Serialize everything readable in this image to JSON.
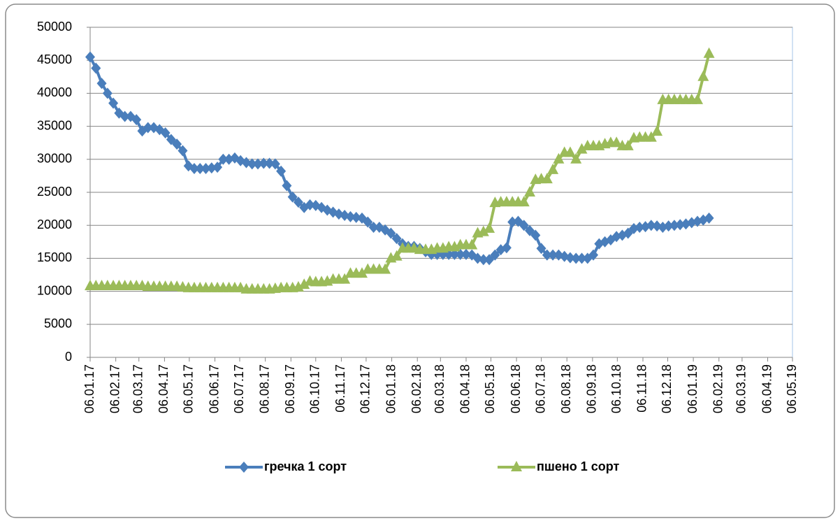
{
  "chart_data": {
    "type": "line",
    "x": [
      "2017-01-06",
      "2017-01-13",
      "2017-01-20",
      "2017-01-27",
      "2017-02-03",
      "2017-02-10",
      "2017-02-17",
      "2017-02-24",
      "2017-03-03",
      "2017-03-10",
      "2017-03-17",
      "2017-03-24",
      "2017-03-31",
      "2017-04-07",
      "2017-04-14",
      "2017-04-21",
      "2017-04-28",
      "2017-05-05",
      "2017-05-12",
      "2017-05-19",
      "2017-05-26",
      "2017-06-02",
      "2017-06-09",
      "2017-06-16",
      "2017-06-23",
      "2017-06-30",
      "2017-07-07",
      "2017-07-14",
      "2017-07-21",
      "2017-07-28",
      "2017-08-04",
      "2017-08-11",
      "2017-08-18",
      "2017-08-25",
      "2017-09-01",
      "2017-09-08",
      "2017-09-15",
      "2017-09-22",
      "2017-09-29",
      "2017-10-06",
      "2017-10-13",
      "2017-10-20",
      "2017-10-27",
      "2017-11-03",
      "2017-11-10",
      "2017-11-17",
      "2017-11-24",
      "2017-12-01",
      "2017-12-08",
      "2017-12-15",
      "2017-12-22",
      "2017-12-29",
      "2018-01-05",
      "2018-01-12",
      "2018-01-19",
      "2018-01-26",
      "2018-02-02",
      "2018-02-09",
      "2018-02-16",
      "2018-02-23",
      "2018-03-02",
      "2018-03-09",
      "2018-03-16",
      "2018-03-23",
      "2018-03-30",
      "2018-04-06",
      "2018-04-13",
      "2018-04-20",
      "2018-04-27",
      "2018-05-04",
      "2018-05-11",
      "2018-05-18",
      "2018-05-25",
      "2018-06-01",
      "2018-06-08",
      "2018-06-15",
      "2018-06-22",
      "2018-06-29",
      "2018-07-06",
      "2018-07-13",
      "2018-07-20",
      "2018-07-27",
      "2018-08-03",
      "2018-08-10",
      "2018-08-17",
      "2018-08-24",
      "2018-08-31",
      "2018-09-07",
      "2018-09-14",
      "2018-09-21",
      "2018-09-28",
      "2018-10-05",
      "2018-10-12",
      "2018-10-19",
      "2018-10-26",
      "2018-11-02",
      "2018-11-09",
      "2018-11-16",
      "2018-11-23",
      "2018-11-30",
      "2018-12-07",
      "2018-12-14",
      "2018-12-21",
      "2018-12-28",
      "2019-01-04",
      "2019-01-11",
      "2019-01-18",
      "2019-01-25"
    ],
    "series": [
      {
        "name": "гречка 1 сорт",
        "color": "#4a7ebb",
        "marker": "diamond",
        "values": [
          45500,
          43800,
          41500,
          40000,
          38500,
          37000,
          36500,
          36500,
          36000,
          34300,
          34800,
          34800,
          34500,
          34000,
          33000,
          32300,
          31300,
          29000,
          28600,
          28600,
          28600,
          28700,
          28800,
          30000,
          30000,
          30200,
          29800,
          29500,
          29300,
          29300,
          29400,
          29400,
          29300,
          28200,
          26000,
          24300,
          23500,
          22700,
          23100,
          23000,
          22700,
          22300,
          22000,
          21700,
          21500,
          21300,
          21200,
          21100,
          20500,
          19700,
          19700,
          19300,
          18800,
          18000,
          17200,
          16800,
          16800,
          16500,
          16000,
          15600,
          15600,
          15600,
          15600,
          15600,
          15600,
          15600,
          15500,
          15000,
          14800,
          14800,
          15500,
          16300,
          16600,
          20500,
          20600,
          20000,
          19200,
          18500,
          16500,
          15500,
          15500,
          15500,
          15300,
          15100,
          15000,
          15000,
          15000,
          15500,
          17200,
          17500,
          17800,
          18300,
          18500,
          18800,
          19500,
          19700,
          19800,
          20000,
          19900,
          19700,
          19900,
          20000,
          20100,
          20200,
          20400,
          20600,
          20800,
          21100
        ]
      },
      {
        "name": "пшено 1 сорт",
        "color": "#9bbb59",
        "marker": "triangle",
        "values": [
          10800,
          10800,
          10800,
          10800,
          10800,
          10800,
          10800,
          10800,
          10800,
          10800,
          10700,
          10700,
          10700,
          10700,
          10700,
          10700,
          10600,
          10500,
          10500,
          10500,
          10500,
          10500,
          10500,
          10500,
          10500,
          10500,
          10500,
          10300,
          10300,
          10300,
          10300,
          10300,
          10400,
          10500,
          10500,
          10500,
          10600,
          11000,
          11500,
          11400,
          11400,
          11500,
          11800,
          11800,
          11800,
          12700,
          12700,
          12700,
          13300,
          13300,
          13300,
          13300,
          15000,
          15300,
          16500,
          16500,
          16500,
          16300,
          16300,
          16300,
          16500,
          16500,
          16700,
          16700,
          17000,
          17000,
          17000,
          18800,
          19000,
          19500,
          23400,
          23500,
          23500,
          23500,
          23500,
          23500,
          25000,
          26900,
          27000,
          27000,
          28400,
          30000,
          31000,
          31000,
          30000,
          31500,
          32000,
          32000,
          32000,
          32300,
          32500,
          32500,
          32000,
          32000,
          33200,
          33300,
          33300,
          33300,
          34200,
          39000,
          39000,
          39000,
          39000,
          39000,
          39000,
          39000,
          42500,
          46000
        ]
      }
    ],
    "ylim": [
      0,
      50000
    ],
    "yticks": [
      0,
      5000,
      10000,
      15000,
      20000,
      25000,
      30000,
      35000,
      40000,
      45000,
      50000
    ],
    "xlim": [
      "2017-01-06",
      "2019-05-06"
    ],
    "xticks": [
      {
        "value": "2017-01-06",
        "label": "06.01.17"
      },
      {
        "value": "2017-02-06",
        "label": "06.02.17"
      },
      {
        "value": "2017-03-06",
        "label": "06.03.17"
      },
      {
        "value": "2017-04-06",
        "label": "06.04.17"
      },
      {
        "value": "2017-05-06",
        "label": "06.05.17"
      },
      {
        "value": "2017-06-06",
        "label": "06.06.17"
      },
      {
        "value": "2017-07-06",
        "label": "06.07.17"
      },
      {
        "value": "2017-08-06",
        "label": "06.08.17"
      },
      {
        "value": "2017-09-06",
        "label": "06.09.17"
      },
      {
        "value": "2017-10-06",
        "label": "06.10.17"
      },
      {
        "value": "2017-11-06",
        "label": "06.11.17"
      },
      {
        "value": "2017-12-06",
        "label": "06.12.17"
      },
      {
        "value": "2018-01-06",
        "label": "06.01.18"
      },
      {
        "value": "2018-02-06",
        "label": "06.02.18"
      },
      {
        "value": "2018-03-06",
        "label": "06.03.18"
      },
      {
        "value": "2018-04-06",
        "label": "06.04.18"
      },
      {
        "value": "2018-05-06",
        "label": "06.05.18"
      },
      {
        "value": "2018-06-06",
        "label": "06.06.18"
      },
      {
        "value": "2018-07-06",
        "label": "06.07.18"
      },
      {
        "value": "2018-08-06",
        "label": "06.08.18"
      },
      {
        "value": "2018-09-06",
        "label": "06.09.18"
      },
      {
        "value": "2018-10-06",
        "label": "06.10.18"
      },
      {
        "value": "2018-11-06",
        "label": "06.11.18"
      },
      {
        "value": "2018-12-06",
        "label": "06.12.18"
      },
      {
        "value": "2019-01-06",
        "label": "06.01.19"
      },
      {
        "value": "2019-02-06",
        "label": "06.02.19"
      },
      {
        "value": "2019-03-06",
        "label": "06.03.19"
      },
      {
        "value": "2019-04-06",
        "label": "06.04.19"
      },
      {
        "value": "2019-05-06",
        "label": "06.05.19"
      }
    ],
    "grid": true,
    "legend": "bottom"
  }
}
